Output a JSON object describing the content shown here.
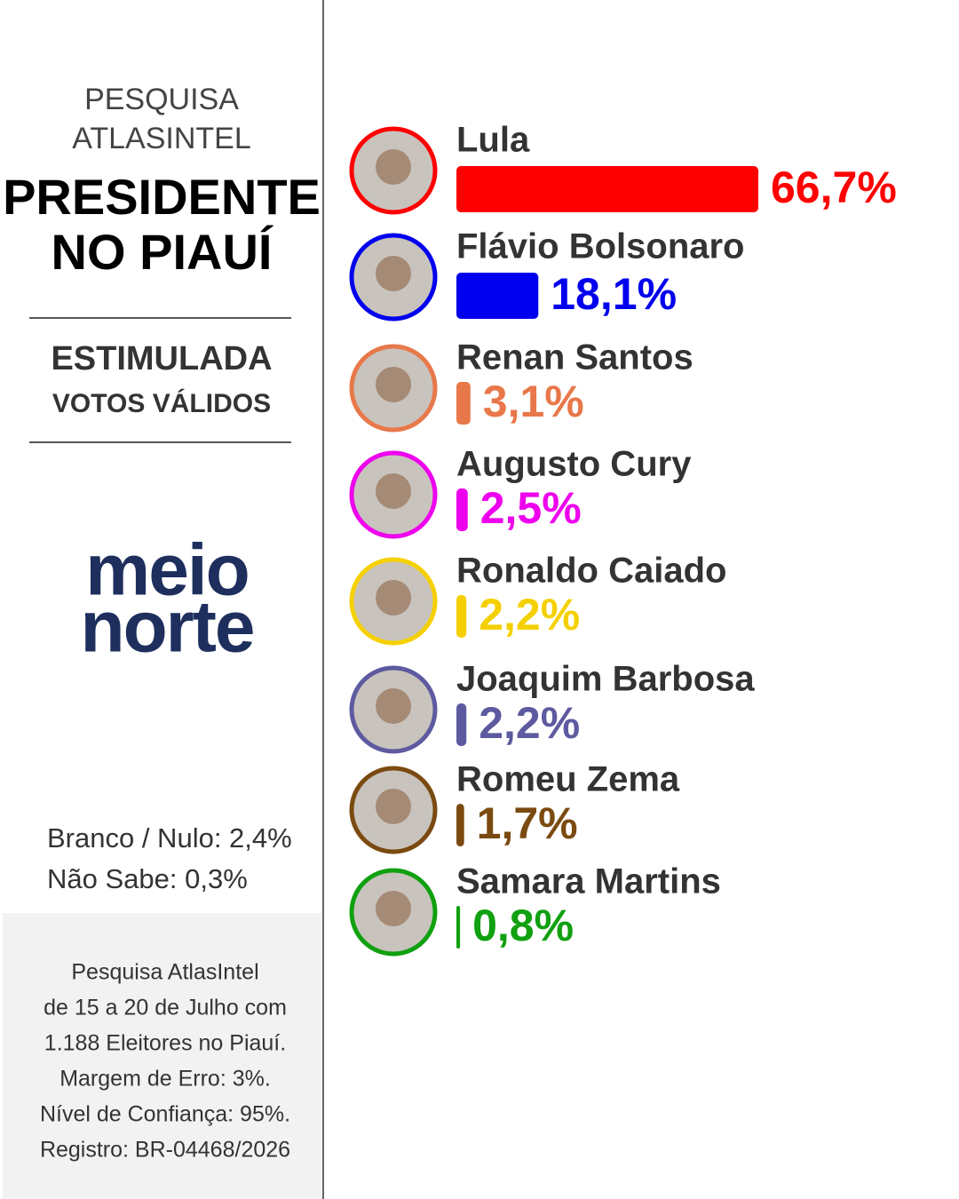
{
  "sidebar": {
    "kicker": [
      "PESQUISA",
      "ATLASINTEL"
    ],
    "title": [
      "PRESIDENTE",
      "NO PIAUÍ"
    ],
    "subtitle": "ESTIMULADA",
    "subtitle2": "VOTOS VÁLIDOS",
    "logo": [
      "meio",
      "norte"
    ],
    "extra": [
      "Branco / Nulo: 2,4%",
      "Não Sabe: 0,3%"
    ],
    "notes": [
      "Pesquisa AtlasIntel",
      "de 15 a 20 de Julho com",
      "1.188 Eleitores no Piauí.",
      "Margem de Erro: 3%.",
      "Nível de Confiança: 95%.",
      "Registro: BR-04468/2026"
    ]
  },
  "chart_data": {
    "type": "bar",
    "orientation": "horizontal",
    "categories": [
      "Lula",
      "Flávio Bolsonaro",
      "Renan Santos",
      "Augusto Cury",
      "Ronaldo Caiado",
      "Joaquim Barbosa",
      "Romeu Zema",
      "Samara Martins"
    ],
    "values": [
      66.7,
      18.1,
      3.1,
      2.5,
      2.2,
      2.2,
      1.7,
      0.8
    ],
    "value_labels": [
      "66,7%",
      "18,1%",
      "3,1%",
      "2,5%",
      "2,2%",
      "2,2%",
      "1,7%",
      "0,8%"
    ],
    "colors": [
      "#ff0000",
      "#0000ee",
      "#e8784a",
      "#ee00ee",
      "#f5d000",
      "#5e5aa0",
      "#7a4a10",
      "#10a010"
    ]
  }
}
